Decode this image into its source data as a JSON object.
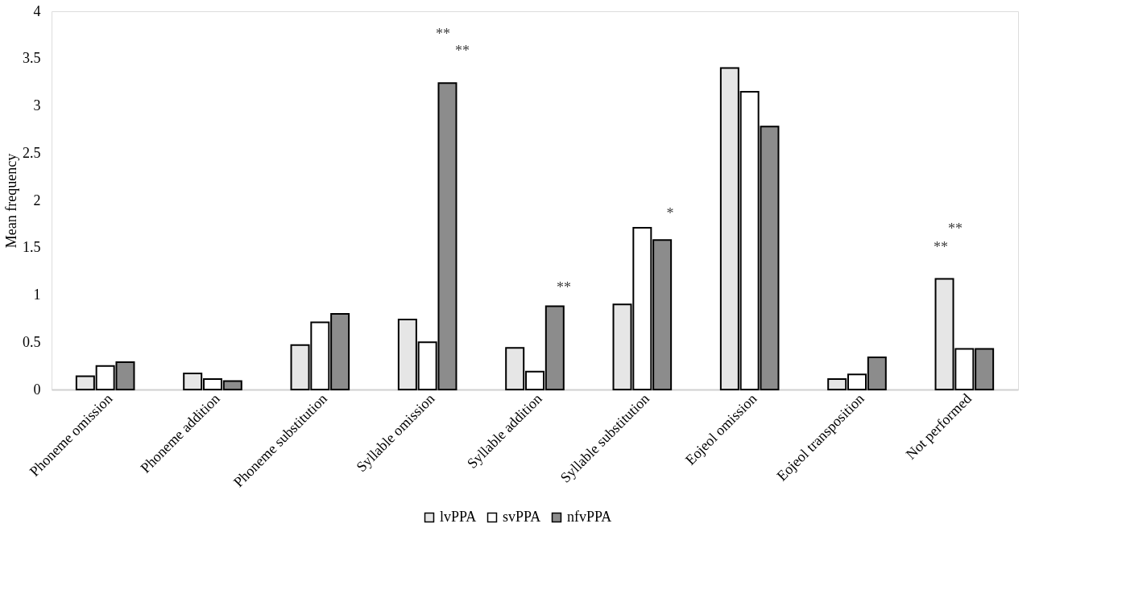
{
  "chart_data": {
    "type": "bar",
    "ylabel": "Mean frequency",
    "categories": [
      "Phoneme omission",
      "Phoneme addition",
      "Phoneme substitution",
      "Syllable omission",
      "Syllable addition",
      "Syllable substitution",
      "Eojeol omission",
      "Eojeol transposition",
      "Not performed"
    ],
    "series": [
      {
        "name": "lvPPA",
        "color": "#e6e6e6",
        "values": [
          0.14,
          0.17,
          0.47,
          0.74,
          0.44,
          0.9,
          3.4,
          0.11,
          1.17
        ]
      },
      {
        "name": "svPPA",
        "color": "#ffffff",
        "values": [
          0.25,
          0.11,
          0.71,
          0.5,
          0.19,
          1.71,
          3.15,
          0.16,
          0.43
        ]
      },
      {
        "name": "nfvPPA",
        "color": "#8c8c8c",
        "values": [
          0.29,
          0.09,
          0.8,
          3.24,
          0.88,
          1.58,
          2.78,
          0.34,
          0.43
        ]
      }
    ],
    "ylim": [
      0,
      4
    ],
    "yticks": [
      0,
      0.5,
      1,
      1.5,
      2,
      2.5,
      3,
      3.5,
      4
    ],
    "annotations": [
      "**",
      "**",
      "**",
      "*",
      "**",
      "**"
    ],
    "grid": false,
    "legend": "bottom"
  }
}
